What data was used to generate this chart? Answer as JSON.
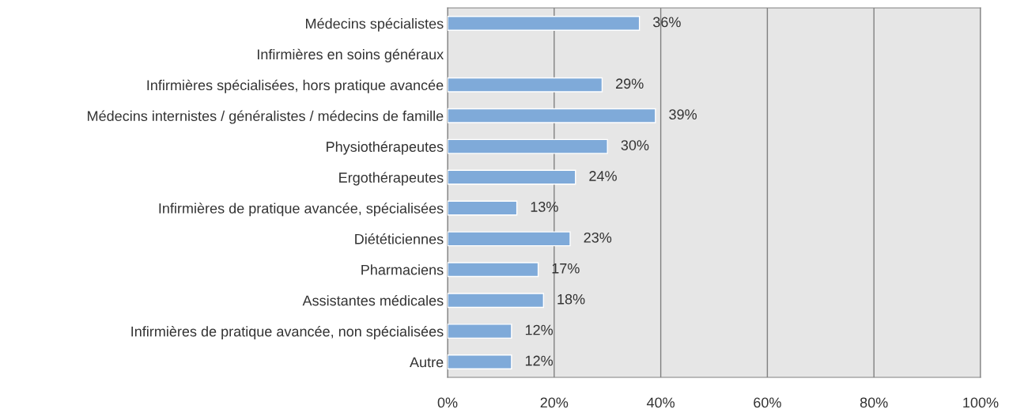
{
  "chart_data": {
    "type": "bar",
    "orientation": "horizontal",
    "categories": [
      "Médecins spécialistes",
      "Infirmières en soins généraux",
      "Infirmières spécialisées, hors pratique avancée",
      "Médecins internistes / généralistes / médecins de famille",
      "Physiothérapeutes",
      "Ergothérapeutes",
      "Infirmières de pratique avancée, spécialisées",
      "Diététiciennes",
      "Pharmaciens",
      "Assistantes médicales",
      "Infirmières de pratique avancée, non spécialisées",
      "Autre"
    ],
    "values": [
      36,
      null,
      29,
      39,
      30,
      24,
      13,
      23,
      17,
      18,
      12,
      12
    ],
    "value_labels": [
      "36%",
      null,
      "29%",
      "39%",
      "30%",
      "24%",
      "13%",
      "23%",
      "17%",
      "18%",
      "12%",
      "12%"
    ],
    "color": "#7faad9",
    "xlim": [
      0,
      100
    ],
    "xticks": [
      {
        "value": 0,
        "label": "0%"
      },
      {
        "value": 20,
        "label": "20%"
      },
      {
        "value": 40,
        "label": "40%"
      },
      {
        "value": 60,
        "label": "60%"
      },
      {
        "value": 80,
        "label": "80%"
      },
      {
        "value": 100,
        "label": "100%"
      }
    ],
    "grid": "x"
  }
}
